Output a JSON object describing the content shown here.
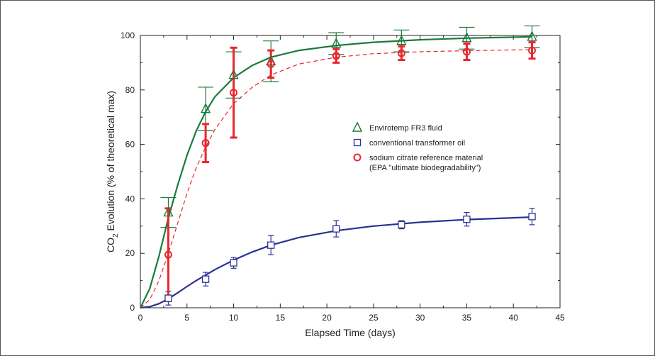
{
  "chart_data": {
    "type": "scatter",
    "title": "",
    "xlabel": "Elapsed Time (days)",
    "ylabel_prefix": "CO",
    "ylabel_sub": "2",
    "ylabel_suffix": " Evolution (% of theoretical max)",
    "xlim": [
      0,
      45
    ],
    "ylim": [
      0,
      100
    ],
    "x_ticks": [
      "0",
      "5",
      "10",
      "15",
      "20",
      "25",
      "30",
      "35",
      "40",
      "45"
    ],
    "y_ticks": [
      "0",
      "20",
      "40",
      "60",
      "80",
      "100"
    ],
    "grid": false,
    "legend_position": "center-right",
    "series": [
      {
        "name": "Envirotemp  FR3 fluid",
        "marker": "triangle",
        "color": "#1b7a3a",
        "x": [
          3,
          7,
          10,
          14,
          21,
          28,
          35,
          42
        ],
        "y": [
          35,
          73,
          85.5,
          90.5,
          97,
          98,
          99,
          99.5
        ],
        "err": [
          5.5,
          8,
          8.5,
          7.5,
          4,
          4,
          4,
          4
        ],
        "fit": [
          [
            0,
            0
          ],
          [
            1,
            7
          ],
          [
            2,
            19
          ],
          [
            3,
            33
          ],
          [
            4,
            45
          ],
          [
            5,
            56
          ],
          [
            6,
            65
          ],
          [
            7,
            72
          ],
          [
            8,
            77.5
          ],
          [
            10,
            84.5
          ],
          [
            12,
            89
          ],
          [
            14,
            92
          ],
          [
            17,
            94.5
          ],
          [
            21,
            96.3
          ],
          [
            25,
            97.5
          ],
          [
            30,
            98.4
          ],
          [
            35,
            99
          ],
          [
            42,
            99.5
          ]
        ],
        "fit_style": "solid"
      },
      {
        "name": "conventional transformer oil",
        "marker": "square",
        "color": "#2a3196",
        "x": [
          3,
          7,
          10,
          14,
          21,
          28,
          35,
          42
        ],
        "y": [
          3.5,
          10.5,
          16.5,
          23,
          29,
          30.5,
          32.5,
          33.5
        ],
        "err": [
          2.5,
          2.5,
          2,
          3.5,
          3,
          1.5,
          2.5,
          3
        ],
        "fit": [
          [
            0,
            0
          ],
          [
            1,
            0.4
          ],
          [
            2,
            1.5
          ],
          [
            3,
            3.3
          ],
          [
            4,
            5.5
          ],
          [
            5,
            7.8
          ],
          [
            6,
            10
          ],
          [
            7,
            12
          ],
          [
            8,
            14
          ],
          [
            10,
            17.5
          ],
          [
            12,
            20.5
          ],
          [
            14,
            23
          ],
          [
            17,
            25.8
          ],
          [
            21,
            28.3
          ],
          [
            25,
            30
          ],
          [
            30,
            31.4
          ],
          [
            35,
            32.4
          ],
          [
            42,
            33.3
          ]
        ],
        "fit_style": "solid"
      },
      {
        "name": "sodium citrate reference material",
        "name_line2": "(EPA \"ultimate biodegradability\")",
        "marker": "circle",
        "color": "#e8262e",
        "x": [
          3,
          7,
          10,
          14,
          21,
          28,
          35,
          42
        ],
        "y": [
          19.5,
          60.5,
          79,
          89.5,
          92.5,
          93.5,
          94,
          94.5
        ],
        "err": [
          17,
          7,
          16.5,
          5,
          2.5,
          2.5,
          3,
          3
        ],
        "fit": [
          [
            0,
            0
          ],
          [
            1,
            3
          ],
          [
            2,
            10
          ],
          [
            3,
            20
          ],
          [
            4,
            31
          ],
          [
            5,
            42
          ],
          [
            6,
            51.5
          ],
          [
            7,
            59
          ],
          [
            8,
            65.5
          ],
          [
            10,
            75
          ],
          [
            12,
            81
          ],
          [
            14,
            85.5
          ],
          [
            17,
            89.5
          ],
          [
            21,
            92
          ],
          [
            25,
            93.3
          ],
          [
            30,
            94
          ],
          [
            35,
            94.4
          ],
          [
            42,
            94.8
          ]
        ],
        "fit_style": "dashed"
      }
    ]
  }
}
